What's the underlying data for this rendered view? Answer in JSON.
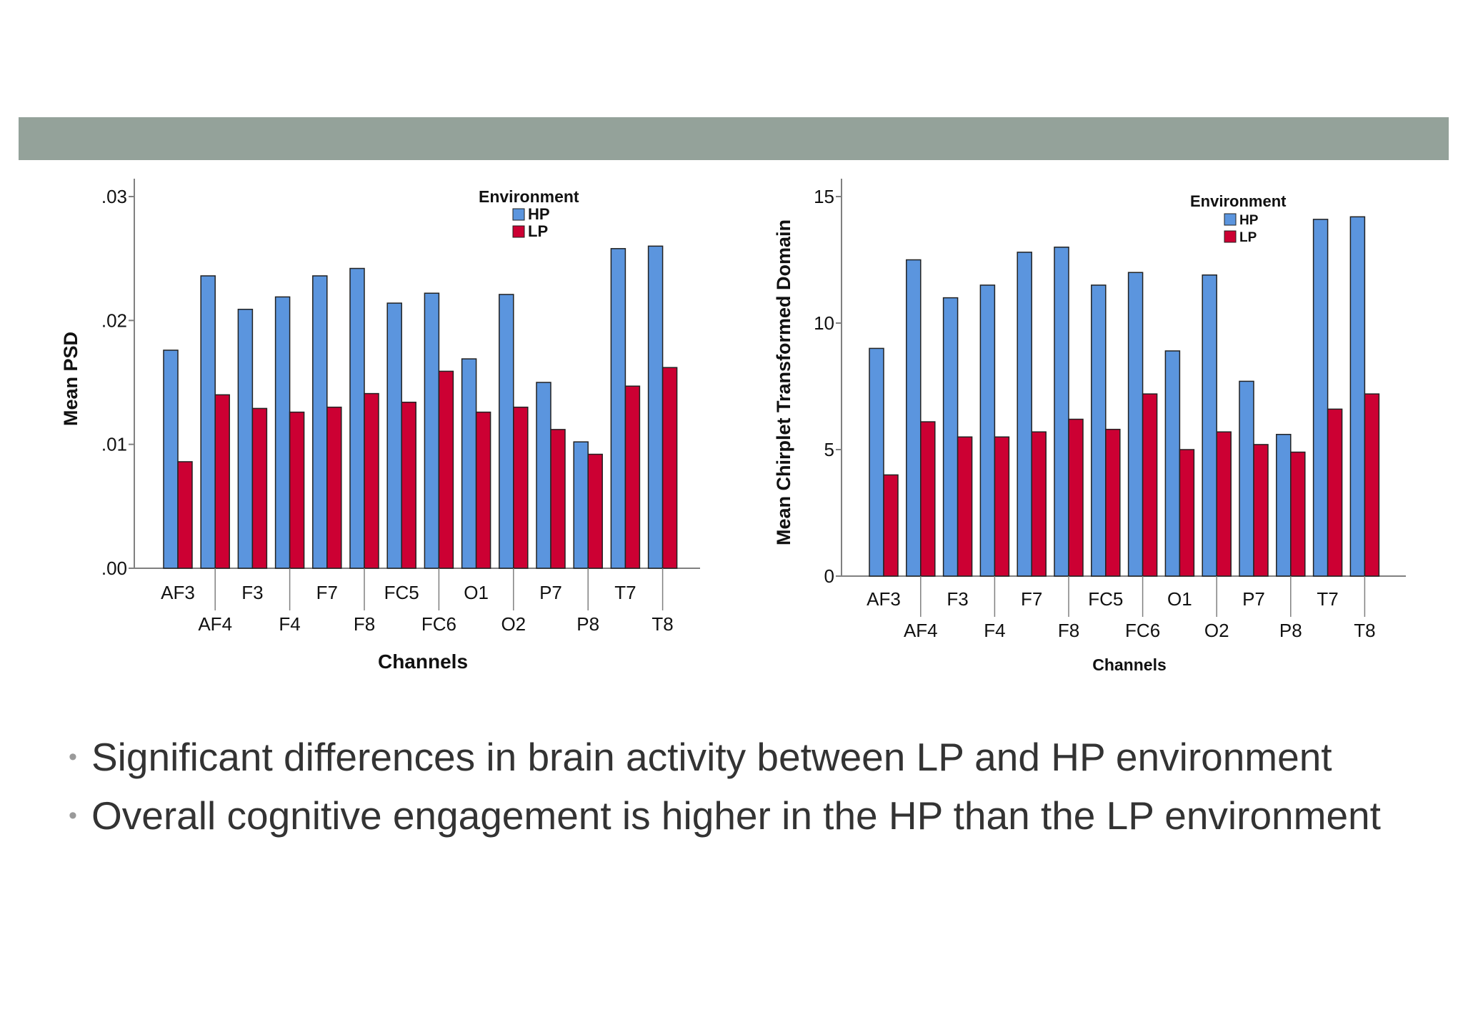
{
  "colors": {
    "header_band": "#94a29a",
    "hp": "#5b95de",
    "lp": "#cc0033",
    "axis": "#808080"
  },
  "chart_data": [
    {
      "type": "bar",
      "categories": [
        "AF3",
        "AF4",
        "F3",
        "F4",
        "F7",
        "F8",
        "FC5",
        "FC6",
        "O1",
        "O2",
        "P7",
        "P8",
        "T7",
        "T8"
      ],
      "series": [
        {
          "name": "HP",
          "values": [
            0.0176,
            0.0236,
            0.0209,
            0.0219,
            0.0236,
            0.0242,
            0.0214,
            0.0222,
            0.0169,
            0.0221,
            0.015,
            0.0102,
            0.0258,
            0.026
          ]
        },
        {
          "name": "LP",
          "values": [
            0.0086,
            0.014,
            0.0129,
            0.0126,
            0.013,
            0.0141,
            0.0134,
            0.0159,
            0.0126,
            0.013,
            0.0112,
            0.0092,
            0.0147,
            0.0162
          ]
        }
      ],
      "ylabel": "Mean PSD",
      "xlabel": "Channels",
      "ylim": [
        0,
        0.03
      ],
      "yticks": [
        ".00",
        ".01",
        ".02",
        ".03"
      ],
      "legend_title": "Environment",
      "legend_position": "top-right"
    },
    {
      "type": "bar",
      "categories": [
        "AF3",
        "AF4",
        "F3",
        "F4",
        "F7",
        "F8",
        "FC5",
        "FC6",
        "O1",
        "O2",
        "P7",
        "P8",
        "T7",
        "T8"
      ],
      "series": [
        {
          "name": "HP",
          "values": [
            9.0,
            12.5,
            11.0,
            11.5,
            12.8,
            13.0,
            11.5,
            12.0,
            8.9,
            11.9,
            7.7,
            5.6,
            14.1,
            14.2
          ]
        },
        {
          "name": "LP",
          "values": [
            4.0,
            6.1,
            5.5,
            5.5,
            5.7,
            6.2,
            5.8,
            7.2,
            5.0,
            5.7,
            5.2,
            4.9,
            6.6,
            7.2
          ]
        }
      ],
      "ylabel": "Mean Chirplet Transformed Domain",
      "xlabel": "Channels",
      "ylim": [
        0,
        15
      ],
      "yticks": [
        "0",
        "5",
        "10",
        "15"
      ],
      "legend_title": "Environment",
      "legend_position": "top-right"
    }
  ],
  "bullets": [
    "Significant differences in brain activity between LP and HP environment",
    "Overall cognitive engagement is higher in the HP than the LP environment"
  ]
}
